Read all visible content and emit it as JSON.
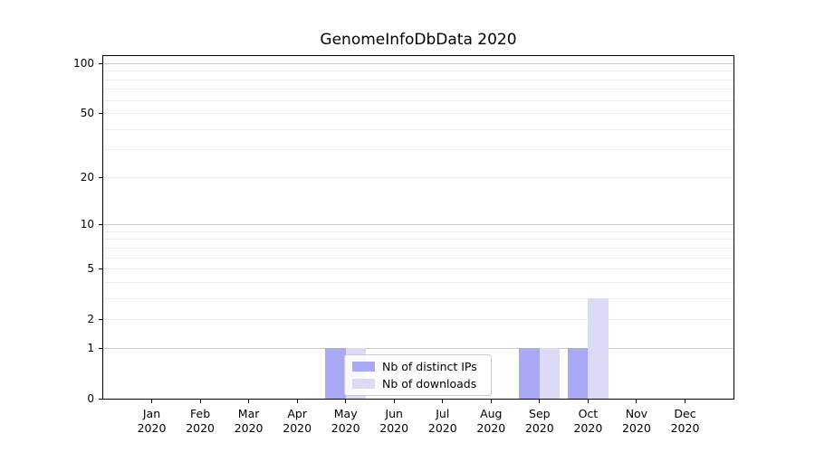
{
  "title": "GenomeInfoDbData 2020",
  "chart_data": {
    "type": "bar",
    "title": "GenomeInfoDbData 2020",
    "categories": [
      "Jan",
      "Feb",
      "Mar",
      "Apr",
      "May",
      "Jun",
      "Jul",
      "Aug",
      "Sep",
      "Oct",
      "Nov",
      "Dec"
    ],
    "x_year": "2020",
    "series": [
      {
        "name": "Nb of distinct IPs",
        "color": "#a8a8f5",
        "values": [
          0,
          0,
          0,
          0,
          1,
          0,
          0,
          0,
          1,
          1,
          0,
          0
        ]
      },
      {
        "name": "Nb of downloads",
        "color": "#dbdbf8",
        "values": [
          0,
          0,
          0,
          0,
          1,
          0,
          0,
          0,
          1,
          3,
          0,
          0
        ]
      }
    ],
    "scale": "log1p",
    "ylim": [
      0,
      110.6
    ],
    "y_tick_labels": [
      100,
      50,
      20,
      10,
      5,
      2,
      1,
      0
    ],
    "y_major_gridlines": [
      1,
      10,
      100
    ],
    "y_minor_gridlines": [
      2,
      3,
      4,
      5,
      6,
      7,
      8,
      9,
      20,
      30,
      40,
      50,
      60,
      70,
      80,
      90
    ],
    "grid": true,
    "legend_position": "lower center",
    "colors": {
      "bar_distinct_ips": "#a8a8f5",
      "bar_downloads": "#dbdbf8",
      "grid_major": "#c9c9c9",
      "grid_minor": "#ededed",
      "axis": "#000000",
      "background": "#ffffff"
    }
  }
}
